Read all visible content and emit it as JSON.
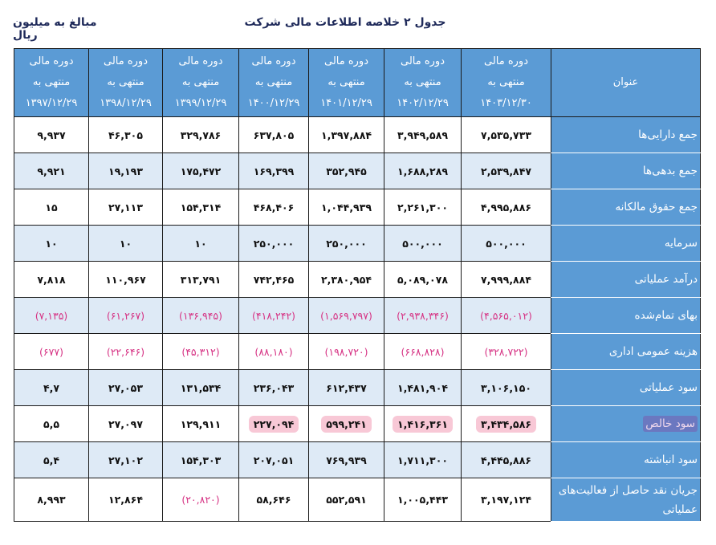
{
  "title": "جدول ۲ خلاصه اطلاعات مالی شرکت",
  "unit_note": "مبالغ به میلیون ریال",
  "colors": {
    "header_bg": "#5b9bd5",
    "alt_row_bg": "#deeaf6",
    "negative_text": "#d63384",
    "highlight_bg": "#f8c8d6"
  },
  "table": {
    "label_header": "عنوان",
    "periods": [
      {
        "line1": "دوره مالی",
        "line2": "منتهی به",
        "date": "۱۴۰۳/۱۲/۳۰"
      },
      {
        "line1": "دوره مالی",
        "line2": "منتهی به",
        "date": "۱۴۰۲/۱۲/۲۹"
      },
      {
        "line1": "دوره مالی",
        "line2": "منتهی به",
        "date": "۱۴۰۱/۱۲/۲۹"
      },
      {
        "line1": "دوره مالی",
        "line2": "منتهی به",
        "date": "۱۴۰۰/۱۲/۲۹"
      },
      {
        "line1": "دوره مالی",
        "line2": "منتهی به",
        "date": "۱۳۹۹/۱۲/۲۹"
      },
      {
        "line1": "دوره مالی",
        "line2": "منتهی به",
        "date": "۱۳۹۸/۱۲/۲۹"
      },
      {
        "line1": "دوره مالی",
        "line2": "منتهی به",
        "date": "۱۳۹۷/۱۲/۲۹"
      }
    ],
    "rows": [
      {
        "label": "جمع دارایی‌ها",
        "values": [
          "۷,۵۳۵,۷۳۳",
          "۳,۹۴۹,۵۸۹",
          "۱,۳۹۷,۸۸۴",
          "۶۳۷,۸۰۵",
          "۳۲۹,۷۸۶",
          "۴۶,۳۰۵",
          "۹,۹۳۷"
        ]
      },
      {
        "label": "جمع بدهی‌ها",
        "values": [
          "۲,۵۳۹,۸۴۷",
          "۱,۶۸۸,۲۸۹",
          "۳۵۲,۹۴۵",
          "۱۶۹,۳۹۹",
          "۱۷۵,۴۷۲",
          "۱۹,۱۹۳",
          "۹,۹۲۱"
        ]
      },
      {
        "label": "جمع حقوق مالکانه",
        "values": [
          "۴,۹۹۵,۸۸۶",
          "۲,۲۶۱,۳۰۰",
          "۱,۰۴۴,۹۳۹",
          "۴۶۸,۴۰۶",
          "۱۵۴,۳۱۴",
          "۲۷,۱۱۳",
          "۱۵"
        ]
      },
      {
        "label": "سرمایه",
        "values": [
          "۵۰۰,۰۰۰",
          "۵۰۰,۰۰۰",
          "۲۵۰,۰۰۰",
          "۲۵۰,۰۰۰",
          "۱۰",
          "۱۰",
          "۱۰"
        ]
      },
      {
        "label": "درآمد عملیاتی",
        "values": [
          "۷,۹۹۹,۸۸۴",
          "۵,۰۸۹,۰۷۸",
          "۲,۳۸۰,۹۵۴",
          "۷۴۲,۴۶۵",
          "۳۱۳,۷۹۱",
          "۱۱۰,۹۶۷",
          "۷,۸۱۸"
        ]
      },
      {
        "label": "بهای تمام‌شده",
        "values": [
          "(۴,۵۶۵,۰۱۲)",
          "(۲,۹۳۸,۳۴۶)",
          "(۱,۵۶۹,۷۹۷)",
          "(۴۱۸,۲۴۲)",
          "(۱۳۶,۹۴۵)",
          "(۶۱,۲۶۷)",
          "(۷,۱۳۵)"
        ]
      },
      {
        "label": "هزینه عمومی اداری",
        "values": [
          "(۳۲۸,۷۲۲)",
          "(۶۶۸,۸۲۸)",
          "(۱۹۸,۷۲۰)",
          "(۸۸,۱۸۰)",
          "(۴۵,۳۱۲)",
          "(۲۲,۶۴۶)",
          "(۶۷۷)"
        ]
      },
      {
        "label": "سود عملیاتی",
        "values": [
          "۳,۱۰۶,۱۵۰",
          "۱,۴۸۱,۹۰۴",
          "۶۱۲,۴۳۷",
          "۲۳۶,۰۴۳",
          "۱۳۱,۵۳۴",
          "۲۷,۰۵۳",
          "۴,۷"
        ]
      },
      {
        "label": "سود خالص",
        "label_highlighted": true,
        "highlighted_values": 4,
        "values": [
          "۳,۴۳۴,۵۸۶",
          "۱,۴۱۶,۳۶۱",
          "۵۹۹,۲۴۱",
          "۲۲۷,۰۹۴",
          "۱۲۹,۹۱۱",
          "۲۷,۰۹۷",
          "۵,۵"
        ]
      },
      {
        "label": "سود انباشته",
        "values": [
          "۴,۴۴۵,۸۸۶",
          "۱,۷۱۱,۳۰۰",
          "۷۶۹,۹۳۹",
          "۲۰۷,۰۵۱",
          "۱۵۴,۳۰۳",
          "۲۷,۱۰۲",
          "۵,۴"
        ]
      },
      {
        "label": "جریان نقد حاصل از فعالیت‌های عملیاتی",
        "values": [
          "۳,۱۹۷,۱۲۴",
          "۱,۰۰۵,۴۴۳",
          "۵۵۲,۵۹۱",
          "۵۸,۶۴۶",
          "(۲۰,۸۲۰)",
          "۱۲,۸۶۴",
          "۸,۹۹۳"
        ]
      }
    ]
  }
}
